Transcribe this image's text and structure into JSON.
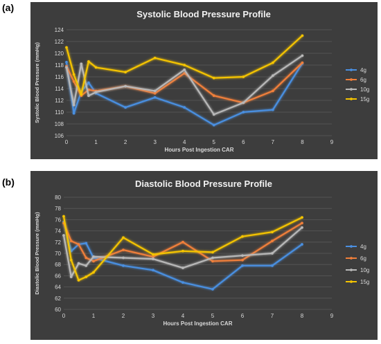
{
  "panels": [
    {
      "label": "(a)"
    },
    {
      "label": "(b)"
    }
  ],
  "colors": {
    "background": "#3d3d3d",
    "grid": "#5a5a5a",
    "text": "#d9d9d9",
    "title": "#f2f2f2",
    "series": {
      "4g": "#4a8fe0",
      "6g": "#f07f3a",
      "10g": "#b8b8b8",
      "15g": "#f5c400"
    }
  },
  "chart_data": [
    {
      "type": "line",
      "title": "Systolic Blood Pressure Profile",
      "xlabel": "Hours Post Ingestion CAR",
      "ylabel": "Systolic Blood Pressure (mmHg)",
      "xlim": [
        0,
        9
      ],
      "ylim": [
        106,
        124
      ],
      "xticks": [
        0,
        1,
        2,
        3,
        4,
        5,
        6,
        7,
        8,
        9
      ],
      "yticks": [
        106,
        108,
        110,
        112,
        114,
        116,
        118,
        120,
        122,
        124
      ],
      "grid": "horizontal",
      "legend": "right",
      "series": [
        {
          "name": "4g",
          "x": [
            0,
            0.25,
            0.5,
            0.75,
            1,
            2,
            3,
            4,
            5,
            6,
            7,
            8
          ],
          "y": [
            118.5,
            109.8,
            113.5,
            115.0,
            113.2,
            110.8,
            112.5,
            110.8,
            107.8,
            110.0,
            110.4,
            118.3
          ]
        },
        {
          "name": "6g",
          "x": [
            0,
            0.25,
            0.5,
            0.75,
            1,
            2,
            3,
            4,
            5,
            6,
            7,
            8
          ],
          "y": [
            117.8,
            115.2,
            112.8,
            113.8,
            113.6,
            114.4,
            113.2,
            116.6,
            112.8,
            111.6,
            113.6,
            118.4
          ]
        },
        {
          "name": "10g",
          "x": [
            0,
            0.25,
            0.5,
            0.75,
            1,
            2,
            3,
            4,
            5,
            6,
            7,
            8
          ],
          "y": [
            117.6,
            111.2,
            118.2,
            112.8,
            113.4,
            114.4,
            113.6,
            117.2,
            109.6,
            111.6,
            116.2,
            119.6
          ]
        },
        {
          "name": "15g",
          "x": [
            0,
            0.25,
            0.5,
            0.75,
            1,
            2,
            3,
            4,
            5,
            6,
            7,
            8
          ],
          "y": [
            121.0,
            116.4,
            113.0,
            118.6,
            117.6,
            116.8,
            119.2,
            118.0,
            115.8,
            116.0,
            118.4,
            123.0
          ]
        }
      ]
    },
    {
      "type": "line",
      "title": "Diastolic Blood Pressure Profile",
      "xlabel": "Hours Post Ingestion CAR",
      "ylabel": "Diastolic Blood Pressure (mmHg)",
      "xlim": [
        0,
        9
      ],
      "ylim": [
        60,
        80
      ],
      "xticks": [
        0,
        1,
        2,
        3,
        4,
        5,
        6,
        7,
        8,
        9
      ],
      "yticks": [
        60,
        62,
        64,
        66,
        68,
        70,
        72,
        74,
        76,
        78,
        80
      ],
      "grid": "horizontal",
      "legend": "right",
      "series": [
        {
          "name": "4g",
          "x": [
            0,
            0.25,
            0.5,
            0.75,
            1,
            2,
            3,
            4,
            5,
            6,
            7,
            8
          ],
          "y": [
            75.6,
            70.4,
            71.6,
            71.8,
            69.2,
            67.8,
            67.0,
            64.8,
            63.6,
            67.8,
            67.8,
            71.6
          ]
        },
        {
          "name": "6g",
          "x": [
            0,
            0.25,
            0.5,
            0.75,
            1,
            2,
            3,
            4,
            5,
            6,
            7,
            8
          ],
          "y": [
            75.4,
            72.2,
            71.6,
            69.2,
            68.6,
            70.6,
            69.4,
            72.0,
            68.6,
            68.8,
            72.2,
            75.4
          ]
        },
        {
          "name": "10g",
          "x": [
            0,
            0.25,
            0.5,
            0.75,
            1,
            2,
            3,
            4,
            5,
            6,
            7,
            8
          ],
          "y": [
            73.2,
            65.8,
            68.2,
            67.8,
            69.4,
            69.2,
            69.0,
            67.4,
            69.2,
            69.6,
            70.0,
            74.6
          ]
        },
        {
          "name": "15g",
          "x": [
            0,
            0.25,
            0.5,
            0.75,
            1,
            2,
            3,
            4,
            5,
            6,
            7,
            8
          ],
          "y": [
            76.6,
            68.8,
            65.2,
            65.8,
            66.6,
            72.8,
            69.8,
            70.4,
            70.2,
            73.0,
            73.8,
            76.4
          ]
        }
      ]
    }
  ]
}
